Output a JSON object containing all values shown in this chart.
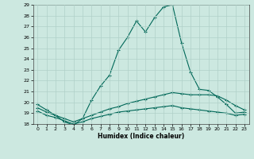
{
  "xlabel": "Humidex (Indice chaleur)",
  "ylabel": "",
  "xlim": [
    -0.5,
    23.5
  ],
  "ylim": [
    18,
    29
  ],
  "yticks": [
    18,
    19,
    20,
    21,
    22,
    23,
    24,
    25,
    26,
    27,
    28,
    29
  ],
  "xticks": [
    0,
    1,
    2,
    3,
    4,
    5,
    6,
    7,
    8,
    9,
    10,
    11,
    12,
    13,
    14,
    15,
    16,
    17,
    18,
    19,
    20,
    21,
    22,
    23
  ],
  "bg_color": "#cce8e0",
  "grid_color": "#b0d0c8",
  "line_color": "#006858",
  "line1_x": [
    0,
    1,
    2,
    3,
    4,
    5,
    6,
    7,
    8,
    9,
    10,
    11,
    12,
    13,
    14,
    15,
    16,
    17,
    18,
    19,
    20,
    21,
    22,
    23
  ],
  "line1_y": [
    19.8,
    19.3,
    18.8,
    18.2,
    17.9,
    18.5,
    20.2,
    21.5,
    22.5,
    24.8,
    26.0,
    27.5,
    26.5,
    27.8,
    28.8,
    29.0,
    25.5,
    22.8,
    21.2,
    21.1,
    20.5,
    19.8,
    19.0,
    19.1
  ],
  "line2_x": [
    0,
    1,
    2,
    3,
    4,
    5,
    6,
    7,
    8,
    9,
    10,
    11,
    12,
    13,
    14,
    15,
    16,
    17,
    18,
    19,
    20,
    21,
    22,
    23
  ],
  "line2_y": [
    19.5,
    19.1,
    18.8,
    18.5,
    18.2,
    18.5,
    18.8,
    19.1,
    19.4,
    19.6,
    19.9,
    20.1,
    20.3,
    20.5,
    20.7,
    20.9,
    20.8,
    20.7,
    20.7,
    20.7,
    20.6,
    20.2,
    19.7,
    19.3
  ],
  "line3_x": [
    0,
    1,
    2,
    3,
    4,
    5,
    6,
    7,
    8,
    9,
    10,
    11,
    12,
    13,
    14,
    15,
    16,
    17,
    18,
    19,
    20,
    21,
    22,
    23
  ],
  "line3_y": [
    19.2,
    18.8,
    18.6,
    18.3,
    18.0,
    18.2,
    18.5,
    18.7,
    18.9,
    19.1,
    19.2,
    19.3,
    19.4,
    19.5,
    19.6,
    19.7,
    19.5,
    19.4,
    19.3,
    19.2,
    19.1,
    19.0,
    18.8,
    18.9
  ]
}
